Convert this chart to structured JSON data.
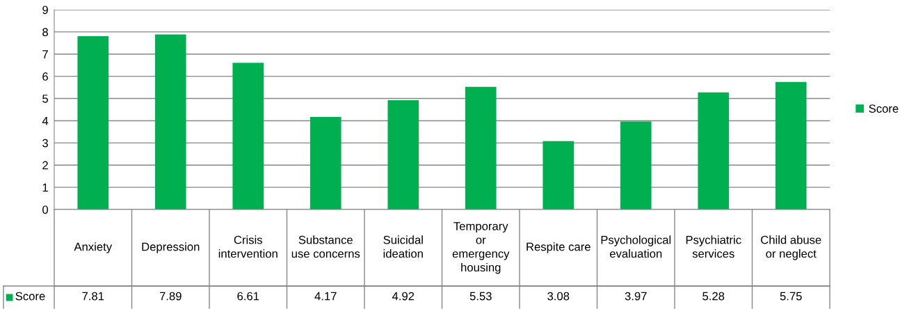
{
  "chart_data": {
    "type": "bar",
    "categories": [
      "Anxiety",
      "Depression",
      "Crisis\nintervention",
      "Substance\nuse concerns",
      "Suicidal\nideation",
      "Temporary\nor\nemergency\nhousing",
      "Respite care",
      "Psychological\nevaluation",
      "Psychiatric\nservices",
      "Child abuse\nor neglect"
    ],
    "series": [
      {
        "name": "Score",
        "color": "#00b050",
        "values": [
          7.81,
          7.89,
          6.61,
          4.17,
          4.92,
          5.53,
          3.08,
          3.97,
          5.28,
          5.75
        ]
      }
    ],
    "ylim": [
      0,
      9
    ],
    "yticks": [
      0,
      1,
      2,
      3,
      4,
      5,
      6,
      7,
      8,
      9
    ],
    "grid": "y",
    "legend": "right",
    "data_labels": true
  }
}
